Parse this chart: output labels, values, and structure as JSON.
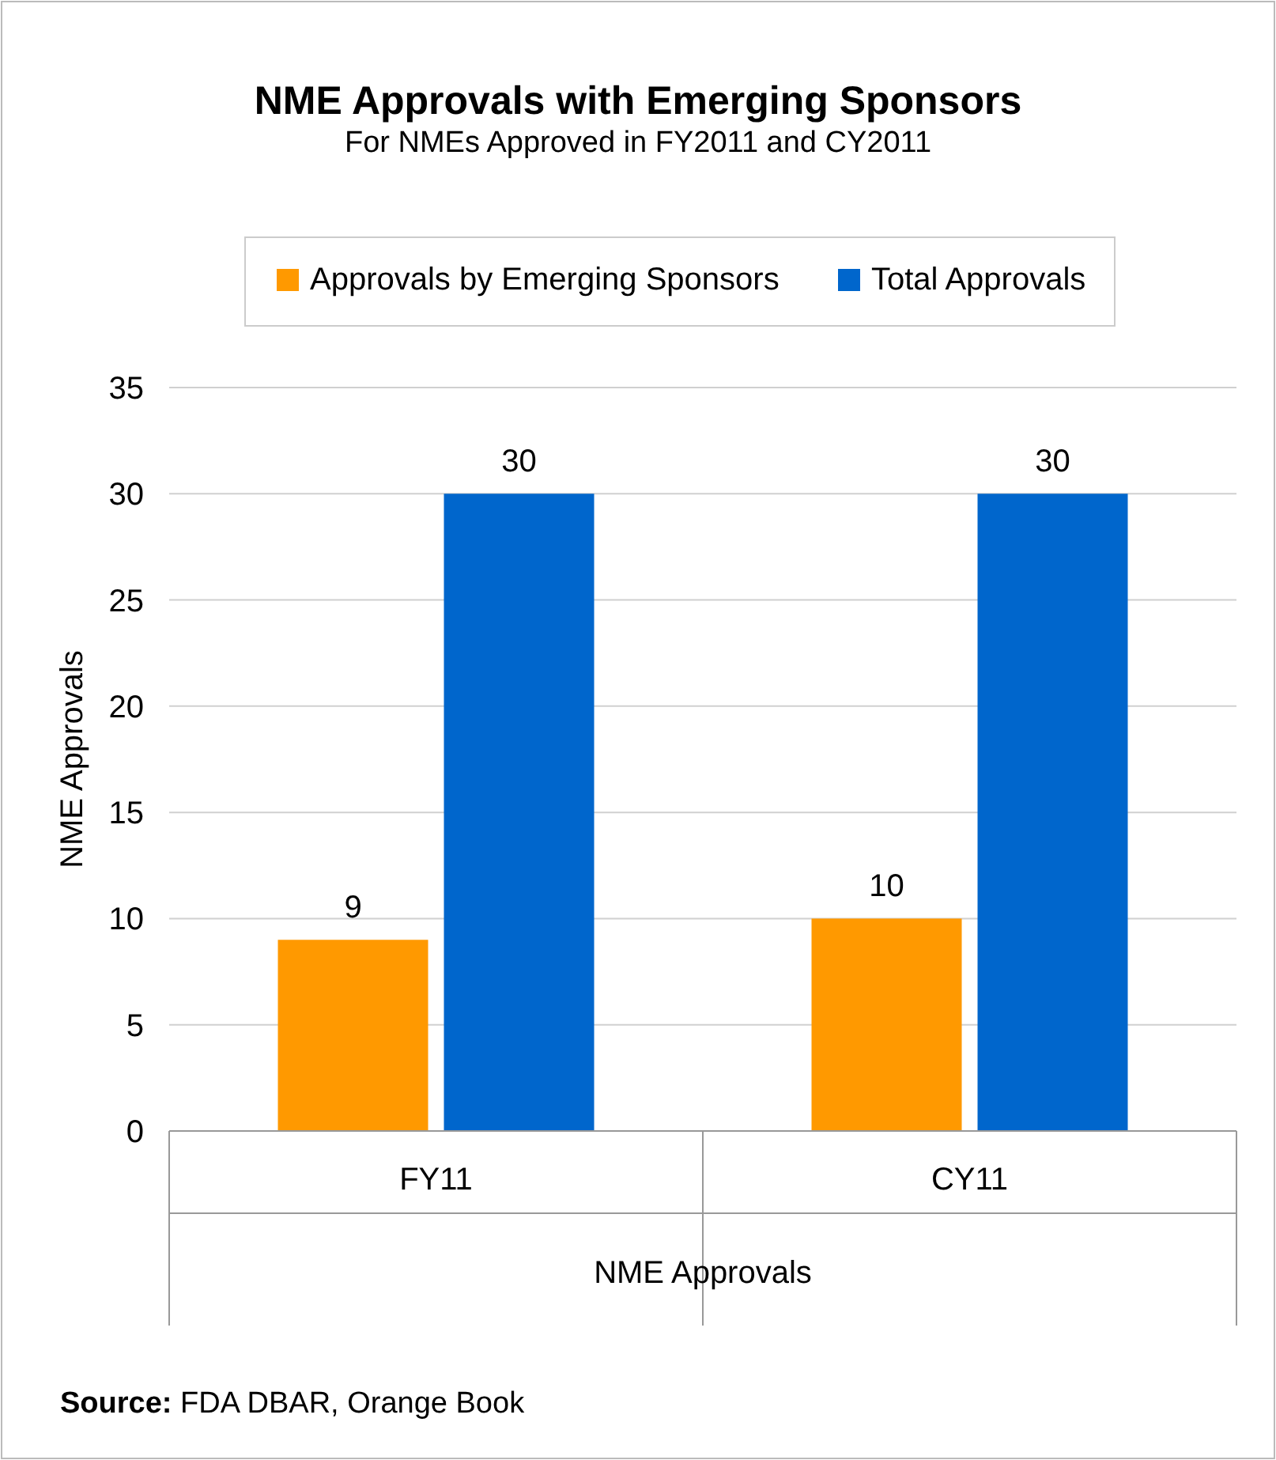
{
  "chart_data": {
    "type": "bar",
    "title": "NME Approvals with Emerging Sponsors",
    "subtitle": "For NMEs Approved in FY2011 and CY2011",
    "ylabel": "NME Approvals",
    "xlabel": "NME Approvals",
    "categories": [
      "FY11",
      "CY11"
    ],
    "series": [
      {
        "name": "Approvals by Emerging Sponsors",
        "color": "#ff9900",
        "values": [
          9,
          10
        ]
      },
      {
        "name": "Total Approvals",
        "color": "#0066cc",
        "values": [
          30,
          30
        ]
      }
    ],
    "ylim": [
      0,
      35
    ],
    "yticks": [
      0,
      5,
      10,
      15,
      20,
      25,
      30,
      35
    ],
    "grid": "y",
    "legend": "top",
    "data_labels": true,
    "annotations": [
      "Source: FDA DBAR, Orange Book"
    ]
  }
}
